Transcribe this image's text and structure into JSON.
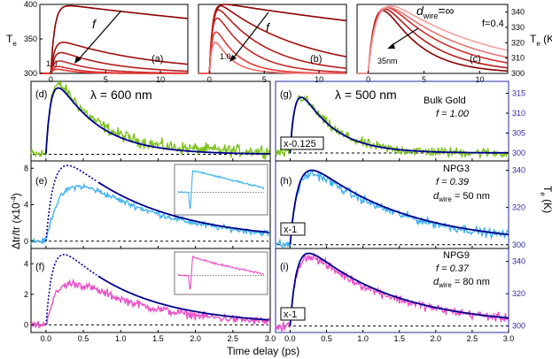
{
  "chart_data": [
    {
      "id": "a",
      "label": "(a)",
      "type": "line",
      "title": "",
      "xlabel": "",
      "ylabel": "T_e (K)",
      "xlim": [
        -1,
        12.5
      ],
      "ylim": [
        300,
        400
      ],
      "xticks": [
        0,
        5,
        10
      ],
      "yticks": [
        300,
        350,
        400
      ],
      "x_tick_labels": [
        "0",
        "5",
        "10"
      ],
      "y_tick_labels": [
        "300",
        "350",
        "400"
      ],
      "axis_label_main": "T",
      "axis_label_sub": "e",
      "arrow_label": "f",
      "arrow_end_label": "1.0",
      "series": [
        {
          "name": "f1",
          "color": "#8b0000",
          "peak": 398,
          "rise": 0.35,
          "decay": 50
        },
        {
          "name": "f2",
          "color": "#a30d0d",
          "peak": 345,
          "rise": 0.35,
          "decay": 9
        },
        {
          "name": "f3",
          "color": "#b71c1c",
          "peak": 330,
          "rise": 0.35,
          "decay": 5
        },
        {
          "name": "f4",
          "color": "#c62828",
          "peak": 318,
          "rise": 0.35,
          "decay": 3
        },
        {
          "name": "f5",
          "color": "#d32f2f",
          "peak": 310,
          "rise": 0.35,
          "decay": 2
        },
        {
          "name": "f6",
          "color": "#e53935",
          "peak": 306,
          "rise": 0.35,
          "decay": 1.5
        }
      ]
    },
    {
      "id": "b",
      "label": "(b)",
      "type": "line",
      "xlim": [
        -1,
        12.5
      ],
      "ylim": [
        300,
        400
      ],
      "xticks": [
        0,
        5,
        10
      ],
      "x_tick_labels": [
        "0",
        "5",
        "10"
      ],
      "arrow_label": "f",
      "arrow_end_label": "1.0",
      "series": [
        {
          "name": "f1",
          "color": "#8b0000",
          "peak": 400,
          "rise": 0.3,
          "decay": 40
        },
        {
          "name": "f2",
          "color": "#a30d0d",
          "peak": 398,
          "rise": 0.3,
          "decay": 8
        },
        {
          "name": "f3",
          "color": "#b71c1c",
          "peak": 392,
          "rise": 0.3,
          "decay": 4.5
        },
        {
          "name": "f4",
          "color": "#c62828",
          "peak": 380,
          "rise": 0.3,
          "decay": 3
        },
        {
          "name": "f5",
          "color": "#e53935",
          "peak": 360,
          "rise": 0.3,
          "decay": 2
        },
        {
          "name": "f6",
          "color": "#ef6c6c",
          "peak": 345,
          "rise": 0.3,
          "decay": 1.5
        }
      ]
    },
    {
      "id": "c",
      "label": "(c)",
      "type": "line",
      "xlim": [
        -1,
        12.5
      ],
      "ylim": [
        300,
        345
      ],
      "xticks": [
        0,
        5,
        10
      ],
      "yticks": [
        300,
        310,
        320,
        330,
        340
      ],
      "x_tick_labels": [
        "0",
        "5",
        "10"
      ],
      "y_tick_labels": [
        "300",
        "310",
        "320",
        "330",
        "340"
      ],
      "right_label_main": "T",
      "right_label_sub": "e",
      "right_label_unit": " (K)",
      "ann_main": "d",
      "ann_sub": "wire",
      "ann_rest": "=∞",
      "ann_f": "f=0.4",
      "arrow_end_label": "35nm",
      "series": [
        {
          "name": "d_inf",
          "color": "#8b0000",
          "peak": 341,
          "rise": 0.8,
          "decay": 3.2
        },
        {
          "name": "d2",
          "color": "#b71c1c",
          "peak": 342,
          "rise": 0.8,
          "decay": 4.2
        },
        {
          "name": "d3",
          "color": "#d32f2f",
          "peak": 343,
          "rise": 0.8,
          "decay": 5.5
        },
        {
          "name": "d4",
          "color": "#e57373",
          "peak": 343,
          "rise": 0.8,
          "decay": 7
        },
        {
          "name": "d35",
          "color": "#f4a0a0",
          "peak": 344,
          "rise": 0.8,
          "decay": 9
        }
      ]
    },
    {
      "id": "d",
      "label": "(d)",
      "type": "line",
      "annotation": "λ = 600 nm",
      "xlim": [
        -0.2,
        3.0
      ],
      "ylim": [
        -0.1,
        1.1
      ],
      "data_color": "#7dc21e",
      "fit_color": "#00008b",
      "data_noise": 0.1,
      "data_peak": 1.0,
      "data_rise": 0.08,
      "data_decay": 0.55,
      "data_offset": 0.04,
      "fit_peak": 1.0,
      "fit_rise": 0.08,
      "fit_decay": 0.55
    },
    {
      "id": "e",
      "label": "(e)",
      "type": "line",
      "xlim": [
        -0.2,
        3.0
      ],
      "ylim": [
        -0.8,
        8.8
      ],
      "yticks": [
        0,
        4,
        8
      ],
      "y_tick_labels": [
        "0",
        "4",
        "8"
      ],
      "data_color": "#43b3ee",
      "fit_color": "#00008b",
      "data_noise": 0.35,
      "data_peak": 6.0,
      "data_rise": 0.25,
      "data_decay": 1.2,
      "dotted_peak": 8.3,
      "dotted_rise": 0.12,
      "dotted_decay": 1.2,
      "solid_from": 0.7,
      "inset": {
        "kind": "e",
        "color": "#43b3ee"
      }
    },
    {
      "id": "f",
      "label": "(f)",
      "type": "line",
      "xlim": [
        -0.2,
        3.0
      ],
      "ylim": [
        -0.5,
        5.0
      ],
      "yticks": [
        0,
        2,
        4
      ],
      "y_tick_labels": [
        "0",
        "2",
        "4"
      ],
      "x_tick_labels": [
        "0.0",
        "0.5",
        "1.0",
        "1.5",
        "2.0",
        "2.5",
        "3.0"
      ],
      "xticks": [
        0,
        0.5,
        1,
        1.5,
        2,
        2.5,
        3
      ],
      "data_color": "#e94fc8",
      "fit_color": "#00008b",
      "data_noise": 0.3,
      "data_peak": 2.7,
      "data_rise": 0.2,
      "data_decay": 1.0,
      "dotted_peak": 4.6,
      "dotted_rise": 0.1,
      "dotted_decay": 1.0,
      "solid_from": 0.7,
      "inset": {
        "kind": "f",
        "color": "#e94fc8"
      }
    },
    {
      "id": "g",
      "label": "(g)",
      "type": "line",
      "annotation": "λ = 500 nm",
      "sample": "Bulk Gold",
      "f_text": "f = 1.00",
      "scale_label": "x-0.125",
      "xlim": [
        -0.2,
        3.0
      ],
      "ylim": [
        298,
        318
      ],
      "yticks": [
        300,
        305,
        310,
        315
      ],
      "y_tick_labels": [
        "300",
        "305",
        "310",
        "315"
      ],
      "data_color": "#7dc21e",
      "fit_color": "#00008b",
      "data_noise": 1.4,
      "data_peak": 314,
      "data_rise": 0.08,
      "data_decay": 0.45,
      "fit_peak": 314,
      "fit_rise": 0.08,
      "fit_decay": 0.45,
      "baseline": 300
    },
    {
      "id": "h",
      "label": "(h)",
      "type": "line",
      "sample": "NPG3",
      "f_text": "f = 0.39",
      "d_main": "d",
      "d_sub": "wire",
      "d_rest": " = 50 nm",
      "scale_label": "x-1",
      "xlim": [
        -0.2,
        3.0
      ],
      "ylim": [
        298,
        345
      ],
      "yticks": [
        300,
        320,
        340
      ],
      "y_tick_labels": [
        "300",
        "320",
        "340"
      ],
      "right_axis_main": "T",
      "right_axis_sub": "e",
      "right_axis_unit": " (K)",
      "data_color": "#43b3ee",
      "fit_color": "#00008b",
      "data_noise": 2.6,
      "data_peak": 338,
      "data_rise": 0.12,
      "data_decay": 1.3,
      "fit_peak": 340,
      "fit_rise": 0.12,
      "fit_decay": 1.3,
      "baseline": 300
    },
    {
      "id": "i",
      "label": "(i)",
      "type": "line",
      "sample": "NPG9",
      "f_text": "f = 0.37",
      "d_main": "d",
      "d_sub": "wire",
      "d_rest": " = 80 nm",
      "scale_label": "x-1",
      "xlim": [
        -0.2,
        3.0
      ],
      "ylim": [
        296,
        348
      ],
      "yticks": [
        300,
        320,
        340
      ],
      "y_tick_labels": [
        "300",
        "320",
        "340"
      ],
      "x_tick_labels": [
        "0.0",
        "0.5",
        "1.0",
        "1.5",
        "2.0",
        "2.5",
        "3.0"
      ],
      "xticks": [
        0,
        0.5,
        1,
        1.5,
        2,
        2.5,
        3
      ],
      "data_color": "#e94fc8",
      "fit_color": "#00008b",
      "data_noise": 3.0,
      "data_peak": 343,
      "data_rise": 0.1,
      "data_decay": 1.2,
      "fit_peak": 345,
      "fit_rise": 0.1,
      "fit_decay": 1.2,
      "baseline": 300
    }
  ],
  "shared": {
    "xlabel": "Time delay (ps)",
    "left_ylabel_main": "Δtr/tr (x10",
    "left_ylabel_sup": "-4",
    "left_ylabel_end": ")",
    "fit_color": "#00008b",
    "right_axis_color": "#2a2aa0",
    "baseline_color": "#000000"
  }
}
